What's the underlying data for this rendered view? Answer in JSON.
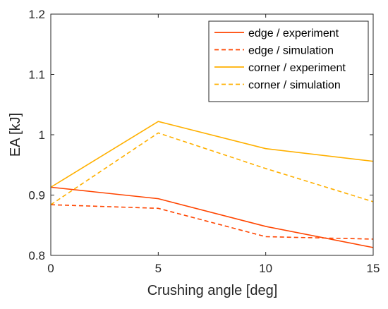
{
  "chart_data": {
    "type": "line",
    "title": "",
    "xlabel": "Crushing angle [deg]",
    "ylabel": "EA [kJ]",
    "x": [
      0,
      5,
      10,
      15
    ],
    "xlim": [
      0,
      15
    ],
    "ylim": [
      0.8,
      1.2
    ],
    "xticks": [
      "0",
      "5",
      "10",
      "15"
    ],
    "yticks": [
      "0.8",
      "0.9",
      "1",
      "1.1",
      "1.2"
    ],
    "grid": false,
    "legend_position": "top-right",
    "series": [
      {
        "name": "edge / experiment",
        "values": [
          0.913,
          0.894,
          0.848,
          0.813
        ],
        "color": "#FF4500",
        "dash": "solid"
      },
      {
        "name": "edge / simulation",
        "values": [
          0.884,
          0.878,
          0.831,
          0.827
        ],
        "color": "#FF4500",
        "dash": "dashed"
      },
      {
        "name": "corner / experiment",
        "values": [
          0.913,
          1.022,
          0.977,
          0.956
        ],
        "color": "#FFB000",
        "dash": "solid"
      },
      {
        "name": "corner / simulation",
        "values": [
          0.884,
          1.003,
          0.944,
          0.889
        ],
        "color": "#FFB000",
        "dash": "dashed"
      }
    ]
  }
}
